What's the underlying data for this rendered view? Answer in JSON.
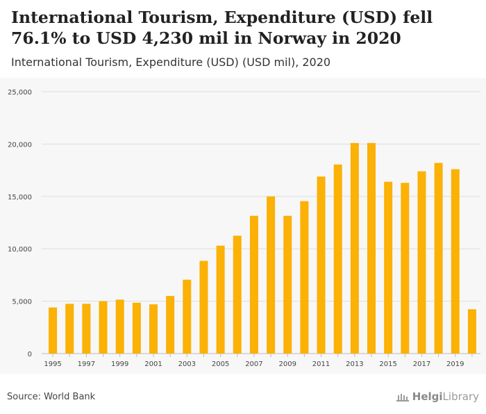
{
  "header": {
    "title": "International Tourism, Expenditure (USD) fell 76.1% to USD 4,230 mil in Norway in 2020",
    "subtitle": "International Tourism, Expenditure (USD) (USD mil), 2020"
  },
  "footer": {
    "source": "Source: World Bank",
    "brand_bold": "Helgi",
    "brand_rest": "Library"
  },
  "colors": {
    "bar": "#FBB105",
    "grid": "#dddddd",
    "axis_text": "#444444"
  },
  "chart_data": {
    "type": "bar",
    "title": "International Tourism, Expenditure (USD) (USD mil), 2020",
    "xlabel": "",
    "ylabel": "",
    "ylim": [
      0,
      25000
    ],
    "yticks": [
      0,
      5000,
      10000,
      15000,
      20000,
      25000
    ],
    "ytick_labels": [
      "0",
      "5,000",
      "10,000",
      "15,000",
      "20,000",
      "25,000"
    ],
    "grid": true,
    "categories": [
      "1995",
      "1996",
      "1997",
      "1998",
      "1999",
      "2000",
      "2001",
      "2002",
      "2003",
      "2004",
      "2005",
      "2006",
      "2007",
      "2008",
      "2009",
      "2010",
      "2011",
      "2012",
      "2013",
      "2014",
      "2015",
      "2016",
      "2017",
      "2018",
      "2019",
      "2020"
    ],
    "xtick_labels": [
      "1995",
      "",
      "1997",
      "",
      "1999",
      "",
      "2001",
      "",
      "2003",
      "",
      "2005",
      "",
      "2007",
      "",
      "2009",
      "",
      "2011",
      "",
      "2013",
      "",
      "2015",
      "",
      "2017",
      "",
      "2019",
      ""
    ],
    "series": [
      {
        "name": "International Tourism, Expenditure (USD)",
        "values": [
          4400,
          4750,
          4750,
          5000,
          5150,
          4850,
          4700,
          5500,
          7050,
          8850,
          10300,
          11250,
          13150,
          15000,
          13150,
          14550,
          16900,
          18050,
          20100,
          20100,
          16400,
          16300,
          17400,
          18200,
          17600,
          4230
        ]
      }
    ]
  }
}
